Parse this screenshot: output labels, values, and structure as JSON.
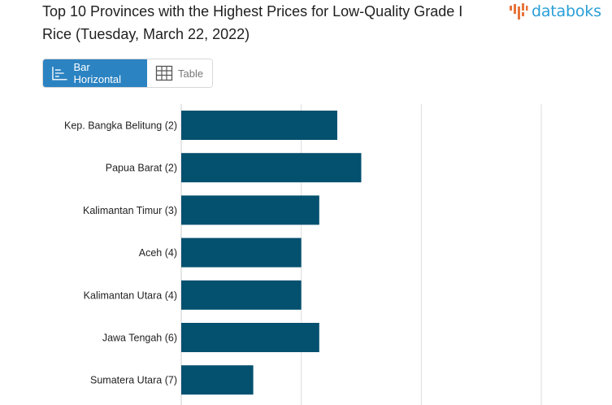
{
  "title": "Top 10 Provinces with the Highest Prices for Low-Quality Grade I Rice (Tuesday, March 22, 2022)",
  "brand": {
    "name": "databoks",
    "logo_color": "#2a9fd8",
    "icon_color": "#e8733a"
  },
  "view_toggle": {
    "bar_label": "Bar Horizontal",
    "table_label": "Table",
    "active": "bar"
  },
  "colors": {
    "bar": "#03506f",
    "grid": "#dddddd",
    "tab_active_bg": "#2b83c2"
  },
  "chart_data": {
    "type": "bar",
    "orientation": "horizontal",
    "categories": [
      "Kep. Bangka Belitung (2)",
      "Papua Barat (2)",
      "Kalimantan Timur (3)",
      "Aceh (4)",
      "Kalimantan Utara (4)",
      "Jawa Tengah (6)",
      "Sumatera Utara (7)"
    ],
    "values": [
      13300,
      13500,
      13150,
      13000,
      13000,
      13150,
      12600
    ],
    "xlim": [
      12000,
      15000
    ],
    "grid": true,
    "legend": "none"
  }
}
